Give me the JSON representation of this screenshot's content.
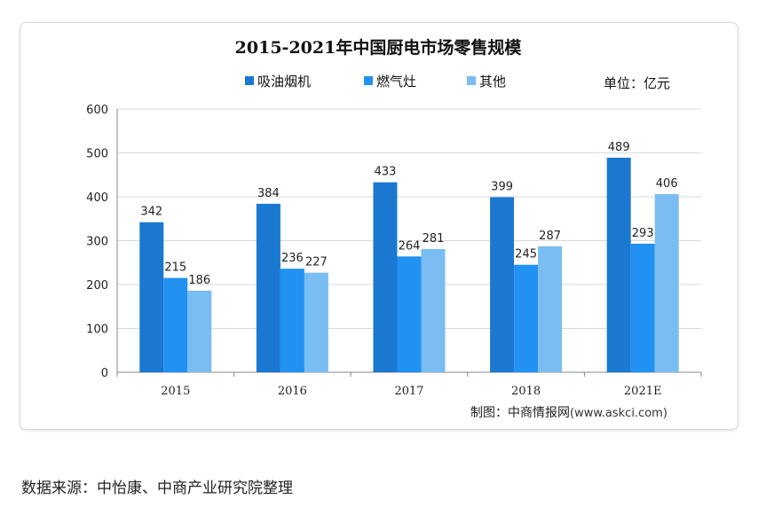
{
  "chart_data": {
    "type": "bar",
    "title": "2015-2021年中国厨电市场零售规模",
    "unit_label": "单位：亿元",
    "categories": [
      "2015",
      "2016",
      "2017",
      "2018",
      "2021E"
    ],
    "series": [
      {
        "name": "吸油烟机",
        "color": "#1a78d0",
        "values": [
          342,
          384,
          433,
          399,
          489
        ]
      },
      {
        "name": "燃气灶",
        "color": "#2191f2",
        "values": [
          215,
          236,
          264,
          245,
          293
        ]
      },
      {
        "name": "其他",
        "color": "#79bdf2",
        "values": [
          186,
          227,
          281,
          287,
          406
        ]
      }
    ],
    "ylim": [
      0,
      600
    ],
    "yticks": [
      0,
      100,
      200,
      300,
      400,
      500,
      600
    ],
    "grid": true,
    "legend": "top",
    "credit": "制图：中商情报网",
    "credit_url": "(www.askci.com)"
  },
  "footer": {
    "source": "数据来源：中怡康、中商产业研究院整理"
  }
}
